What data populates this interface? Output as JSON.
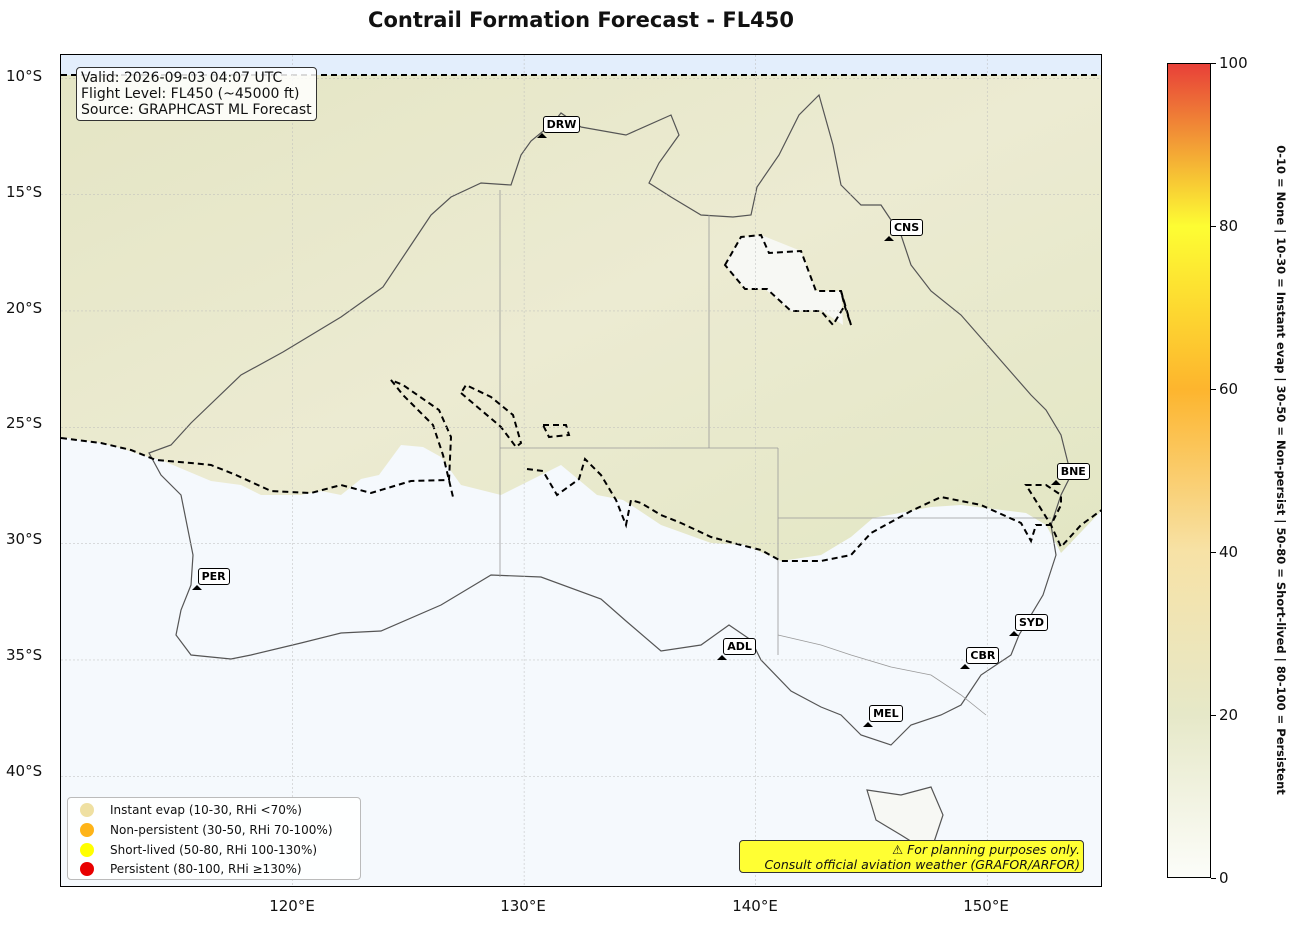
{
  "title": "Contrail Formation Forecast - FL450",
  "info": {
    "valid": "Valid: 2026-09-03 04:07 UTC",
    "flight_level": "Flight Level: FL450 (~45000 ft)",
    "source": "Source: GRAPHCAST ML Forecast"
  },
  "map": {
    "extent": {
      "lon_min": 110,
      "lon_max": 155,
      "lat_min": -44.8,
      "lat_max": -9.0
    },
    "lat_ticks": [
      {
        "value": -10,
        "label": "10°S"
      },
      {
        "value": -15,
        "label": "15°S"
      },
      {
        "value": -20,
        "label": "20°S"
      },
      {
        "value": -25,
        "label": "25°S"
      },
      {
        "value": -30,
        "label": "30°S"
      },
      {
        "value": -35,
        "label": "35°S"
      },
      {
        "value": -40,
        "label": "40°S"
      }
    ],
    "lon_ticks": [
      {
        "value": 120,
        "label": "120°E"
      },
      {
        "value": 130,
        "label": "130°E"
      },
      {
        "value": 140,
        "label": "140°E"
      },
      {
        "value": 150,
        "label": "150°E"
      }
    ],
    "cities": [
      {
        "code": "DRW",
        "lon": 130.8,
        "lat": -12.5
      },
      {
        "code": "CNS",
        "lon": 145.8,
        "lat": -16.9
      },
      {
        "code": "BNE",
        "lon": 153.0,
        "lat": -27.4
      },
      {
        "code": "PER",
        "lon": 115.9,
        "lat": -31.9
      },
      {
        "code": "SYD",
        "lon": 151.2,
        "lat": -33.9
      },
      {
        "code": "ADL",
        "lon": 138.6,
        "lat": -34.9
      },
      {
        "code": "CBR",
        "lon": 149.1,
        "lat": -35.3
      },
      {
        "code": "MEL",
        "lon": 144.9,
        "lat": -37.8
      }
    ],
    "colors": {
      "ocean": "#f5f9fd",
      "land_low": "#fafafa",
      "land_forecast": "#e9ebcc",
      "coast": "#555555",
      "tropic_band": "#e3eefc"
    }
  },
  "legend": {
    "items": [
      {
        "label": "Instant evap (10-30, RHi <70%)",
        "color": "#efe0a2"
      },
      {
        "label": "Non-persistent (30-50, RHi 70-100%)",
        "color": "#feb418"
      },
      {
        "label": "Short-lived (50-80, RHi 100-130%)",
        "color": "#ffff00"
      },
      {
        "label": "Persistent (80-100, RHi ≥130%)",
        "color": "#e80000"
      }
    ]
  },
  "disclaimer": {
    "line1": "⚠ For planning purposes only.",
    "line2": "Consult official aviation weather (GRAFOR/ARFOR)"
  },
  "colorbar": {
    "min": 0,
    "max": 100,
    "ticks": [
      "0",
      "20",
      "40",
      "60",
      "80",
      "100"
    ],
    "label": "0-10 = None  |  10-30 = Instant evap  |  30-50 = Non-persist  |  50-80 = Short-lived  |  80-100 = Persistent",
    "stops": [
      {
        "value": 0,
        "color": "#fcfdf9"
      },
      {
        "value": 20,
        "color": "#e6e8c8"
      },
      {
        "value": 40,
        "color": "#f7e2a6"
      },
      {
        "value": 60,
        "color": "#fdb52e"
      },
      {
        "value": 80,
        "color": "#fdfd33"
      },
      {
        "value": 100,
        "color": "#e84038"
      }
    ]
  }
}
